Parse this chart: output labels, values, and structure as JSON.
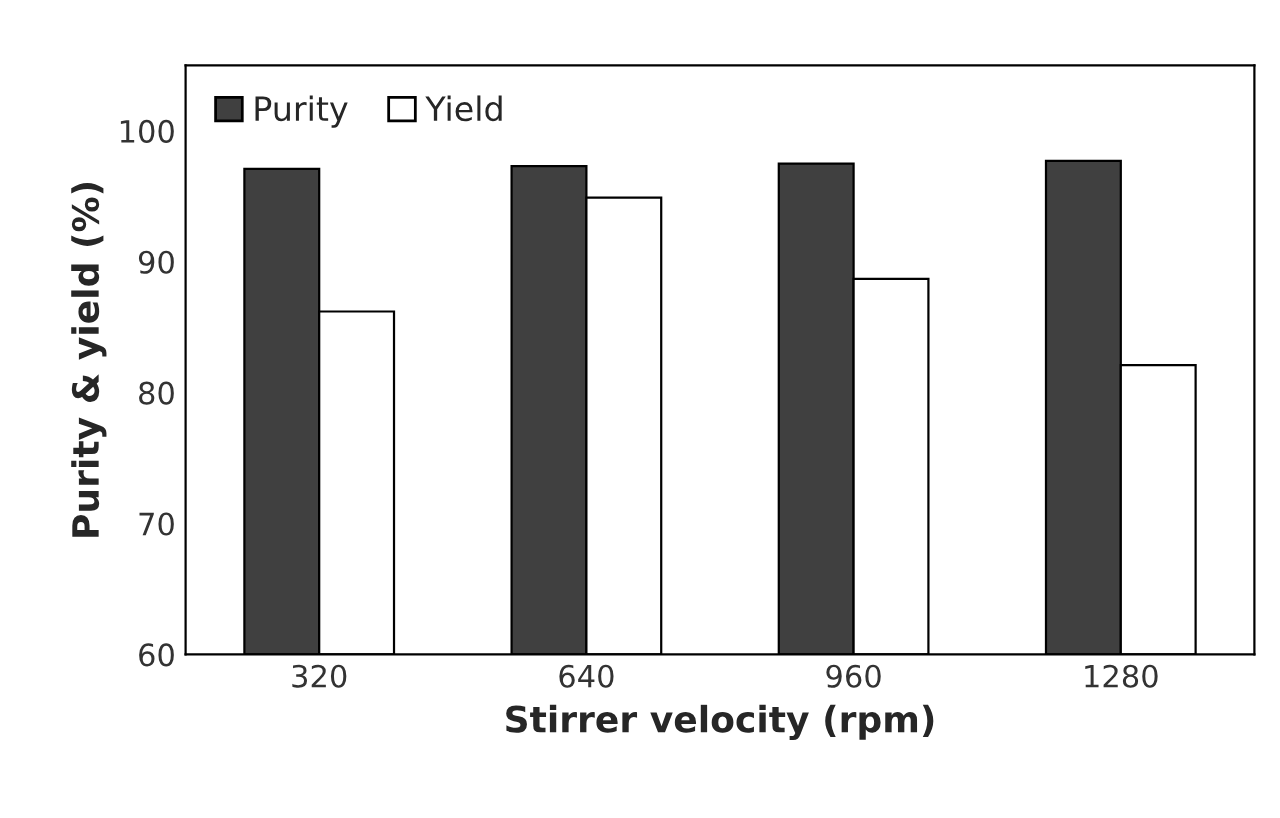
{
  "chart_data": {
    "type": "bar",
    "xlabel": "Stirrer velocity (rpm)",
    "ylabel": "Purity & yield (%)",
    "categories": [
      "320",
      "640",
      "960",
      "1280"
    ],
    "series": [
      {
        "name": "Purity",
        "color": "#404040",
        "values": [
          97.1,
          97.3,
          97.5,
          97.7
        ]
      },
      {
        "name": "Yield",
        "color": "#ffffff",
        "values": [
          86.2,
          94.9,
          88.7,
          82.1
        ]
      }
    ],
    "ylim": [
      60,
      105
    ],
    "yticks": [
      60,
      70,
      80,
      90,
      100
    ],
    "grid": false,
    "legend": "top left"
  }
}
